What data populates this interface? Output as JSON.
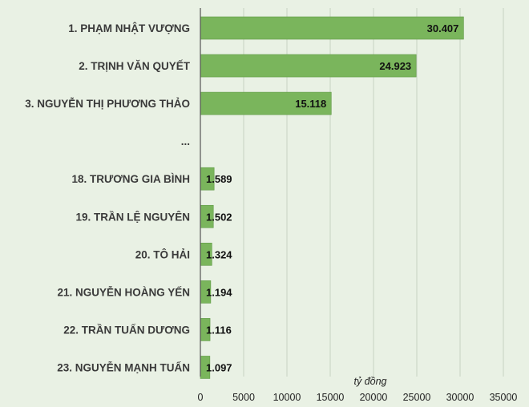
{
  "chart_data": {
    "type": "bar",
    "orientation": "horizontal",
    "categories": [
      "1. PHẠM NHẬT VƯỢNG",
      "2. TRỊNH VĂN QUYẾT",
      "3. NGUYỄN THỊ PHƯƠNG THẢO",
      "...",
      "18. TRƯƠNG GIA BÌNH",
      "19. TRẦN LỆ NGUYÊN",
      "20. TÔ HẢI",
      "21. NGUYỄN HOÀNG YẾN",
      "22. TRẦN TUẤN DƯƠNG",
      "23. NGUYỄN MẠNH TUẤN"
    ],
    "values": [
      30407,
      24923,
      15118,
      null,
      1589,
      1502,
      1324,
      1194,
      1116,
      1097
    ],
    "value_labels": [
      "30.407",
      "24.923",
      "15.118",
      "",
      "1.589",
      "1.502",
      "1.324",
      "1.194",
      "1.116",
      "1.097"
    ],
    "highlight_index": 6,
    "xlabel": "tỷ đồng",
    "xlim": [
      0,
      35000
    ],
    "xticks": [
      "0",
      "5000",
      "10000",
      "15000",
      "20000",
      "25000",
      "30000",
      "35000"
    ],
    "xtick_values": [
      0,
      5000,
      10000,
      15000,
      20000,
      25000,
      30000,
      35000
    ],
    "grid": true,
    "colors": {
      "background": "#e9f1e4",
      "bar": "#7ab55c",
      "bar_edge": "#5f9a45",
      "grid": "#c8d3c2",
      "axis": "#555555",
      "value_text": "#111111",
      "highlight_text": "#c0661f"
    }
  }
}
